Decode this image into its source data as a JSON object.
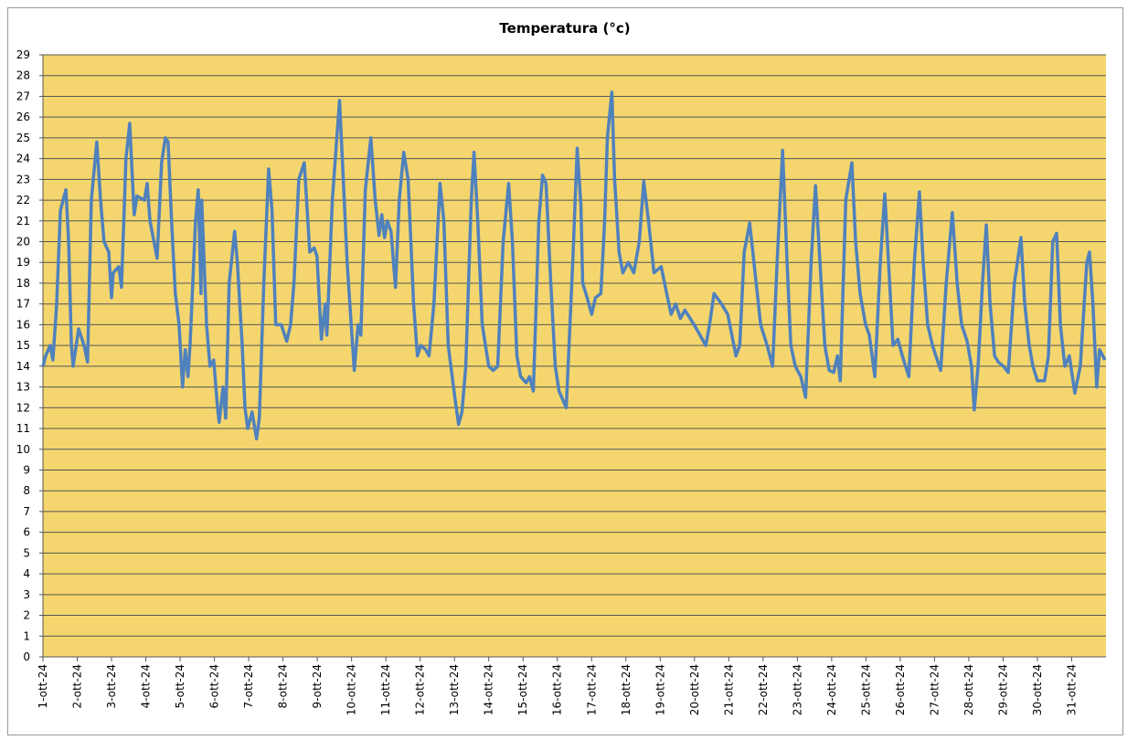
{
  "chart_data": {
    "type": "line",
    "title": "Temperatura (°c)",
    "xlim": [
      0,
      31
    ],
    "xticks": [
      {
        "value": 0,
        "label": "1-ott-24"
      },
      {
        "value": 1,
        "label": "2-ott-24"
      },
      {
        "value": 2,
        "label": "3-ott-24"
      },
      {
        "value": 3,
        "label": "4-ott-24"
      },
      {
        "value": 4,
        "label": "5-ott-24"
      },
      {
        "value": 5,
        "label": "6-ott-24"
      },
      {
        "value": 6,
        "label": "7-ott-24"
      },
      {
        "value": 7,
        "label": "8-ott-24"
      },
      {
        "value": 8,
        "label": "9-ott-24"
      },
      {
        "value": 9,
        "label": "10-ott-24"
      },
      {
        "value": 10,
        "label": "11-ott-24"
      },
      {
        "value": 11,
        "label": "12-ott-24"
      },
      {
        "value": 12,
        "label": "13-ott-24"
      },
      {
        "value": 13,
        "label": "14-ott-24"
      },
      {
        "value": 14,
        "label": "15-ott-24"
      },
      {
        "value": 15,
        "label": "16-ott-24"
      },
      {
        "value": 16,
        "label": "17-ott-24"
      },
      {
        "value": 17,
        "label": "18-ott-24"
      },
      {
        "value": 18,
        "label": "19-ott-24"
      },
      {
        "value": 19,
        "label": "20-ott-24"
      },
      {
        "value": 20,
        "label": "21-ott-24"
      },
      {
        "value": 21,
        "label": "22-ott-24"
      },
      {
        "value": 22,
        "label": "23-ott-24"
      },
      {
        "value": 23,
        "label": "24-ott-24"
      },
      {
        "value": 24,
        "label": "25-ott-24"
      },
      {
        "value": 25,
        "label": "26-ott-24"
      },
      {
        "value": 26,
        "label": "27-ott-24"
      },
      {
        "value": 27,
        "label": "28-ott-24"
      },
      {
        "value": 28,
        "label": "29-ott-24"
      },
      {
        "value": 29,
        "label": "30-ott-24"
      },
      {
        "value": 30,
        "label": "31-ott-24"
      }
    ],
    "ylim": [
      0,
      29
    ],
    "yticks": [
      0,
      1,
      2,
      3,
      4,
      5,
      6,
      7,
      8,
      9,
      10,
      11,
      12,
      13,
      14,
      15,
      16,
      17,
      18,
      19,
      20,
      21,
      22,
      23,
      24,
      25,
      26,
      27,
      28,
      29
    ],
    "grid": true,
    "background": "#f5d66e",
    "x": [
      0,
      0.08,
      0.21,
      0.29,
      0.4,
      0.51,
      0.67,
      0.75,
      0.83,
      0.88,
      1.04,
      1.2,
      1.3,
      1.41,
      1.57,
      1.68,
      1.78,
      1.92,
      2.0,
      2.05,
      2.21,
      2.29,
      2.42,
      2.53,
      2.66,
      2.74,
      2.96,
      3.04,
      3.12,
      3.33,
      3.46,
      3.57,
      3.65,
      3.75,
      3.86,
      3.97,
      4.07,
      4.15,
      4.23,
      4.29,
      4.45,
      4.53,
      4.61,
      4.63,
      4.77,
      4.87,
      4.98,
      5.09,
      5.14,
      5.25,
      5.33,
      5.43,
      5.59,
      5.67,
      5.81,
      5.89,
      5.97,
      6.1,
      6.23,
      6.31,
      6.44,
      6.58,
      6.68,
      6.79,
      6.95,
      7.11,
      7.22,
      7.32,
      7.46,
      7.62,
      7.78,
      7.91,
      7.99,
      8.12,
      8.23,
      8.28,
      8.44,
      8.57,
      8.65,
      8.73,
      8.87,
      8.97,
      9.08,
      9.19,
      9.27,
      9.4,
      9.56,
      9.69,
      9.8,
      9.88,
      9.96,
      10.04,
      10.15,
      10.28,
      10.39,
      10.52,
      10.65,
      10.81,
      10.92,
      11.02,
      11.16,
      11.26,
      11.4,
      11.58,
      11.69,
      11.82,
      12.01,
      12.12,
      12.22,
      12.33,
      12.49,
      12.57,
      12.68,
      12.81,
      13.0,
      13.13,
      13.26,
      13.42,
      13.58,
      13.69,
      13.82,
      13.93,
      14.09,
      14.19,
      14.3,
      14.46,
      14.57,
      14.67,
      14.81,
      14.94,
      15.05,
      15.26,
      15.45,
      15.58,
      15.69,
      15.74,
      15.87,
      16.0,
      16.11,
      16.27,
      16.38,
      16.46,
      16.59,
      16.67,
      16.8,
      16.91,
      17.07,
      17.23,
      17.39,
      17.52,
      17.66,
      17.82,
      18.03,
      18.19,
      18.32,
      18.45,
      18.59,
      18.72,
      18.99,
      19.33,
      19.44,
      19.57,
      19.79,
      19.97,
      20.21,
      20.32,
      20.45,
      20.61,
      20.8,
      20.93,
      21.12,
      21.28,
      21.41,
      21.57,
      21.7,
      21.81,
      21.94,
      22.1,
      22.24,
      22.4,
      22.53,
      22.66,
      22.8,
      22.93,
      23.06,
      23.17,
      23.25,
      23.41,
      23.59,
      23.7,
      23.83,
      23.99,
      24.1,
      24.26,
      24.42,
      24.55,
      24.66,
      24.79,
      24.93,
      25.06,
      25.25,
      25.41,
      25.56,
      25.67,
      25.8,
      25.94,
      26.04,
      26.18,
      26.34,
      26.52,
      26.66,
      26.79,
      26.95,
      27.08,
      27.16,
      27.27,
      27.4,
      27.51,
      27.62,
      27.75,
      27.86,
      28.01,
      28.15,
      28.33,
      28.52,
      28.63,
      28.76,
      28.87,
      29.0,
      29.21,
      29.32,
      29.45,
      29.56,
      29.67,
      29.8,
      29.93,
      30.09,
      30.25,
      30.44,
      30.52,
      30.62,
      30.73,
      30.81,
      30.97
    ],
    "series": [
      {
        "color": "#4f81bd",
        "values": [
          14,
          14.5,
          15,
          14.3,
          17,
          21.5,
          22.5,
          20,
          15,
          14,
          15.8,
          15,
          14.2,
          22,
          24.8,
          22,
          20,
          19.5,
          17.3,
          18.5,
          18.8,
          17.8,
          24,
          25.7,
          21.3,
          22.2,
          22,
          22.8,
          21,
          19.2,
          23.8,
          25,
          24.8,
          21,
          17.5,
          16,
          13,
          14.8,
          13.5,
          15,
          21,
          22.5,
          17.5,
          22,
          16,
          14,
          14.3,
          12,
          11.3,
          13,
          11.5,
          18,
          20.5,
          19,
          15,
          12,
          11,
          11.8,
          10.5,
          11.5,
          18,
          23.5,
          21.5,
          16,
          16,
          15.2,
          16,
          18,
          23,
          23.8,
          19.5,
          19.7,
          19.3,
          15.3,
          17,
          15.5,
          22,
          25,
          26.8,
          24,
          19,
          16.5,
          13.8,
          16,
          15.5,
          22.5,
          25,
          22,
          20.3,
          21.3,
          20.2,
          21,
          20.5,
          17.8,
          22,
          24.3,
          23,
          17,
          14.5,
          15,
          14.8,
          14.5,
          17,
          22.8,
          21,
          15,
          12.5,
          11.2,
          11.8,
          14,
          22,
          24.3,
          21,
          16,
          14,
          13.8,
          14,
          20,
          22.8,
          20,
          14.5,
          13.5,
          13.2,
          13.5,
          12.8,
          21,
          23.2,
          22.8,
          18,
          14,
          12.8,
          12,
          19,
          24.5,
          21.7,
          18,
          17.3,
          16.5,
          17.3,
          17.5,
          21,
          25,
          27.2,
          23,
          19.5,
          18.5,
          19,
          18.5,
          20,
          22.9,
          21,
          18.5,
          18.8,
          17.5,
          16.5,
          17,
          16.3,
          16.7,
          16,
          15,
          16,
          17.5,
          17,
          16.5,
          14.5,
          15,
          19.5,
          20.9,
          18,
          16,
          15,
          14,
          19,
          24.4,
          19,
          15,
          14,
          13.5,
          12.5,
          19,
          22.7,
          19,
          15,
          13.8,
          13.7,
          14.5,
          13.3,
          22,
          23.8,
          20,
          17.5,
          16,
          15.5,
          13.5,
          19,
          22.3,
          19,
          15,
          15.3,
          14.5,
          13.5,
          19,
          22.4,
          19,
          16,
          15,
          14.5,
          13.8,
          18,
          21.4,
          18,
          16,
          15.2,
          14,
          11.9,
          14,
          18,
          20.8,
          17,
          14.5,
          14.2,
          14,
          13.7,
          18,
          20.2,
          17,
          15,
          14,
          13.3,
          13.3,
          14.5,
          20,
          20.4,
          16,
          14,
          14.5,
          12.7,
          14,
          19,
          19.5,
          17,
          13,
          14.8,
          14.3
        ]
      }
    ]
  }
}
